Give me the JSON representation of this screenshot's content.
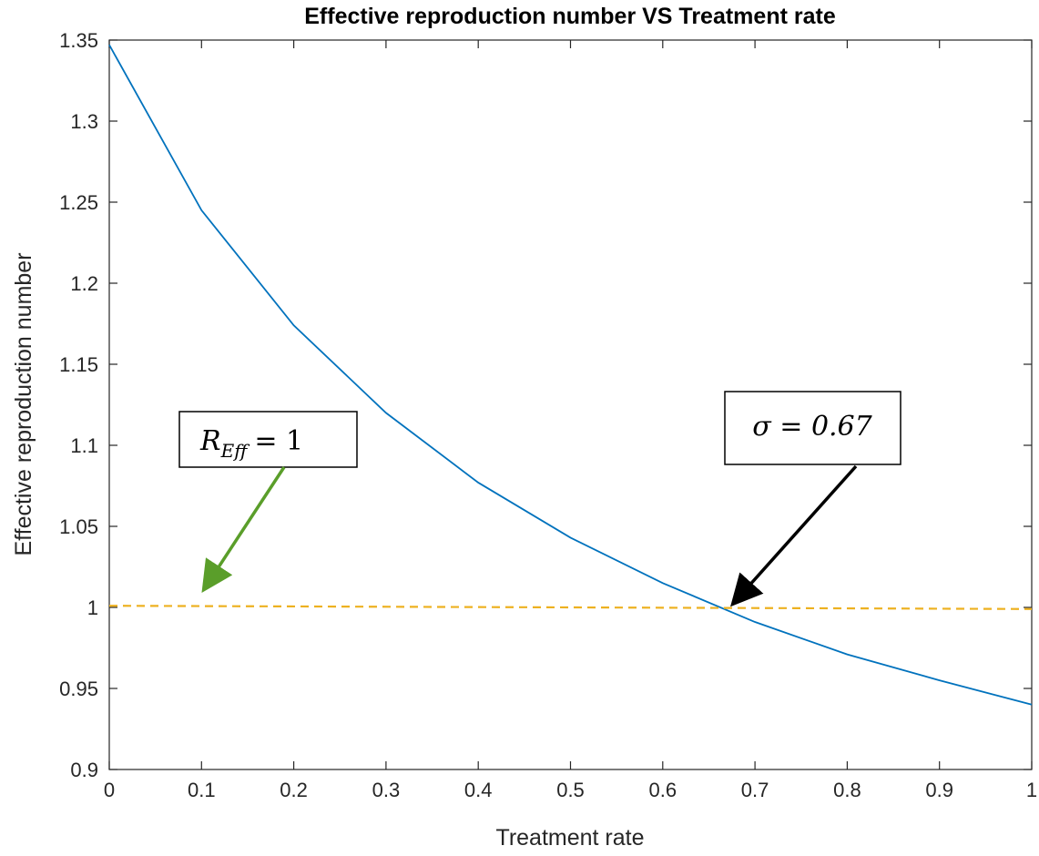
{
  "chart_data": {
    "type": "line",
    "title": "Effective reproduction number VS Treatment rate",
    "xlabel": "Treatment rate",
    "ylabel": "Effective reproduction number",
    "xlim": [
      0,
      1
    ],
    "ylim": [
      0.9,
      1.35
    ],
    "xticks": [
      "0",
      "0.1",
      "0.2",
      "0.3",
      "0.4",
      "0.5",
      "0.6",
      "0.7",
      "0.8",
      "0.9",
      "1"
    ],
    "yticks": [
      "0.9",
      "0.95",
      "1",
      "1.05",
      "1.1",
      "1.15",
      "1.2",
      "1.25",
      "1.3",
      "1.35"
    ],
    "grid": false,
    "series": [
      {
        "style": "solid",
        "color": "#0072BD",
        "x": [
          0,
          0.1,
          0.2,
          0.3,
          0.4,
          0.5,
          0.6,
          0.7,
          0.8,
          0.9,
          1.0
        ],
        "y": [
          1.347,
          1.245,
          1.174,
          1.12,
          1.077,
          1.043,
          1.015,
          0.991,
          0.971,
          0.955,
          0.94
        ]
      },
      {
        "style": "dashed",
        "color": "#EDB120",
        "x": [
          0,
          1
        ],
        "y": [
          1.001,
          0.999
        ]
      }
    ],
    "annotations": [
      {
        "text_main": "R",
        "text_sub": "Eff",
        "text_tail": "= 1",
        "arrow_color": "#5A9E2A",
        "points_to": [
          0.1,
          1.01
        ]
      },
      {
        "text": "σ = 0.67",
        "arrow_color": "#000000",
        "points_to": [
          0.67,
          1.0
        ]
      }
    ]
  }
}
